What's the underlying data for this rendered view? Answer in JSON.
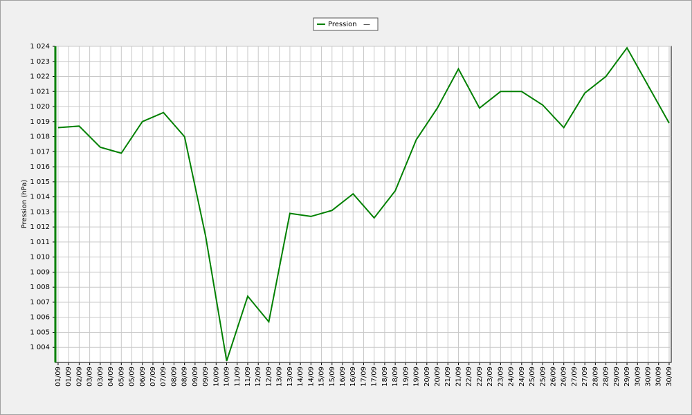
{
  "chart_data": {
    "type": "line",
    "y_axis_label": "Pression (hPa)",
    "series": [
      {
        "name": "Pression",
        "color": "#008000",
        "legend_note": "—",
        "values": [
          1018.6,
          1018.7,
          1017.3,
          1016.9,
          1019.0,
          1019.6,
          1018.0,
          1011.4,
          1003.1,
          1007.4,
          1005.7,
          1012.9,
          1012.7,
          1013.1,
          1014.2,
          1012.6,
          1014.4,
          1017.8,
          1019.9,
          1022.5,
          1019.9,
          1021.0,
          1021.0,
          1020.1,
          1018.6,
          1020.9,
          1022.0,
          1023.9,
          1021.4,
          1018.9
        ]
      }
    ],
    "x": [
      1,
      2,
      3,
      4,
      5,
      6,
      7,
      8,
      9,
      10,
      11,
      12,
      13,
      14,
      15,
      16,
      17,
      18,
      19,
      20,
      21,
      22,
      23,
      24,
      25,
      26,
      27,
      28,
      29,
      30
    ],
    "xlim": [
      0.87,
      30.1
    ],
    "xticks": [
      {
        "value": 1,
        "label": "01/09"
      },
      {
        "value": 1.5,
        "label": "01/09"
      },
      {
        "value": 2,
        "label": "02/09"
      },
      {
        "value": 2.5,
        "label": "03/09"
      },
      {
        "value": 3,
        "label": "03/09"
      },
      {
        "value": 3.5,
        "label": "04/09"
      },
      {
        "value": 4,
        "label": "05/09"
      },
      {
        "value": 4.5,
        "label": "05/09"
      },
      {
        "value": 5,
        "label": "06/09"
      },
      {
        "value": 5.5,
        "label": "07/09"
      },
      {
        "value": 6,
        "label": "07/09"
      },
      {
        "value": 6.5,
        "label": "08/09"
      },
      {
        "value": 7,
        "label": "08/09"
      },
      {
        "value": 7.5,
        "label": "09/09"
      },
      {
        "value": 8,
        "label": "09/09"
      },
      {
        "value": 8.5,
        "label": "10/09"
      },
      {
        "value": 9,
        "label": "10/09"
      },
      {
        "value": 9.5,
        "label": "11/09"
      },
      {
        "value": 10,
        "label": "11/09"
      },
      {
        "value": 10.5,
        "label": "12/09"
      },
      {
        "value": 11,
        "label": "12/09"
      },
      {
        "value": 11.5,
        "label": "13/09"
      },
      {
        "value": 12,
        "label": "13/09"
      },
      {
        "value": 12.5,
        "label": "14/09"
      },
      {
        "value": 13,
        "label": "14/09"
      },
      {
        "value": 13.5,
        "label": "15/09"
      },
      {
        "value": 14,
        "label": "15/09"
      },
      {
        "value": 14.5,
        "label": "16/09"
      },
      {
        "value": 15,
        "label": "16/09"
      },
      {
        "value": 15.5,
        "label": "17/09"
      },
      {
        "value": 16,
        "label": "17/09"
      },
      {
        "value": 16.5,
        "label": "18/09"
      },
      {
        "value": 17,
        "label": "18/09"
      },
      {
        "value": 17.5,
        "label": "19/09"
      },
      {
        "value": 18,
        "label": "19/09"
      },
      {
        "value": 18.5,
        "label": "20/09"
      },
      {
        "value": 19,
        "label": "20/09"
      },
      {
        "value": 19.5,
        "label": "21/09"
      },
      {
        "value": 20,
        "label": "21/09"
      },
      {
        "value": 20.5,
        "label": "22/09"
      },
      {
        "value": 21,
        "label": "22/09"
      },
      {
        "value": 21.5,
        "label": "23/09"
      },
      {
        "value": 22,
        "label": "23/09"
      },
      {
        "value": 22.5,
        "label": "24/09"
      },
      {
        "value": 23,
        "label": "24/09"
      },
      {
        "value": 23.5,
        "label": "25/09"
      },
      {
        "value": 24,
        "label": "25/09"
      },
      {
        "value": 24.5,
        "label": "26/09"
      },
      {
        "value": 25,
        "label": "26/09"
      },
      {
        "value": 25.5,
        "label": "27/09"
      },
      {
        "value": 26,
        "label": "27/09"
      },
      {
        "value": 26.5,
        "label": "28/09"
      },
      {
        "value": 27,
        "label": "28/09"
      },
      {
        "value": 27.5,
        "label": "29/09"
      },
      {
        "value": 28,
        "label": "29/09"
      },
      {
        "value": 28.5,
        "label": "30/09"
      },
      {
        "value": 29,
        "label": "30/09"
      },
      {
        "value": 29.5,
        "label": "30/09"
      },
      {
        "value": 30,
        "label": "30/09"
      }
    ],
    "ylim": [
      1003,
      1024
    ],
    "yticks": [
      {
        "value": 1004,
        "label": "1 004"
      },
      {
        "value": 1005,
        "label": "1 005"
      },
      {
        "value": 1006,
        "label": "1 006"
      },
      {
        "value": 1007,
        "label": "1 007"
      },
      {
        "value": 1008,
        "label": "1 008"
      },
      {
        "value": 1009,
        "label": "1 009"
      },
      {
        "value": 1010,
        "label": "1 010"
      },
      {
        "value": 1011,
        "label": "1 011"
      },
      {
        "value": 1012,
        "label": "1 012"
      },
      {
        "value": 1013,
        "label": "1 013"
      },
      {
        "value": 1014,
        "label": "1 014"
      },
      {
        "value": 1015,
        "label": "1 015"
      },
      {
        "value": 1016,
        "label": "1 016"
      },
      {
        "value": 1017,
        "label": "1 017"
      },
      {
        "value": 1018,
        "label": "1 018"
      },
      {
        "value": 1019,
        "label": "1 019"
      },
      {
        "value": 1020,
        "label": "1 020"
      },
      {
        "value": 1021,
        "label": "1 021"
      },
      {
        "value": 1022,
        "label": "1 022"
      },
      {
        "value": 1023,
        "label": "1 023"
      },
      {
        "value": 1024,
        "label": "1 024"
      }
    ],
    "grid": true
  }
}
